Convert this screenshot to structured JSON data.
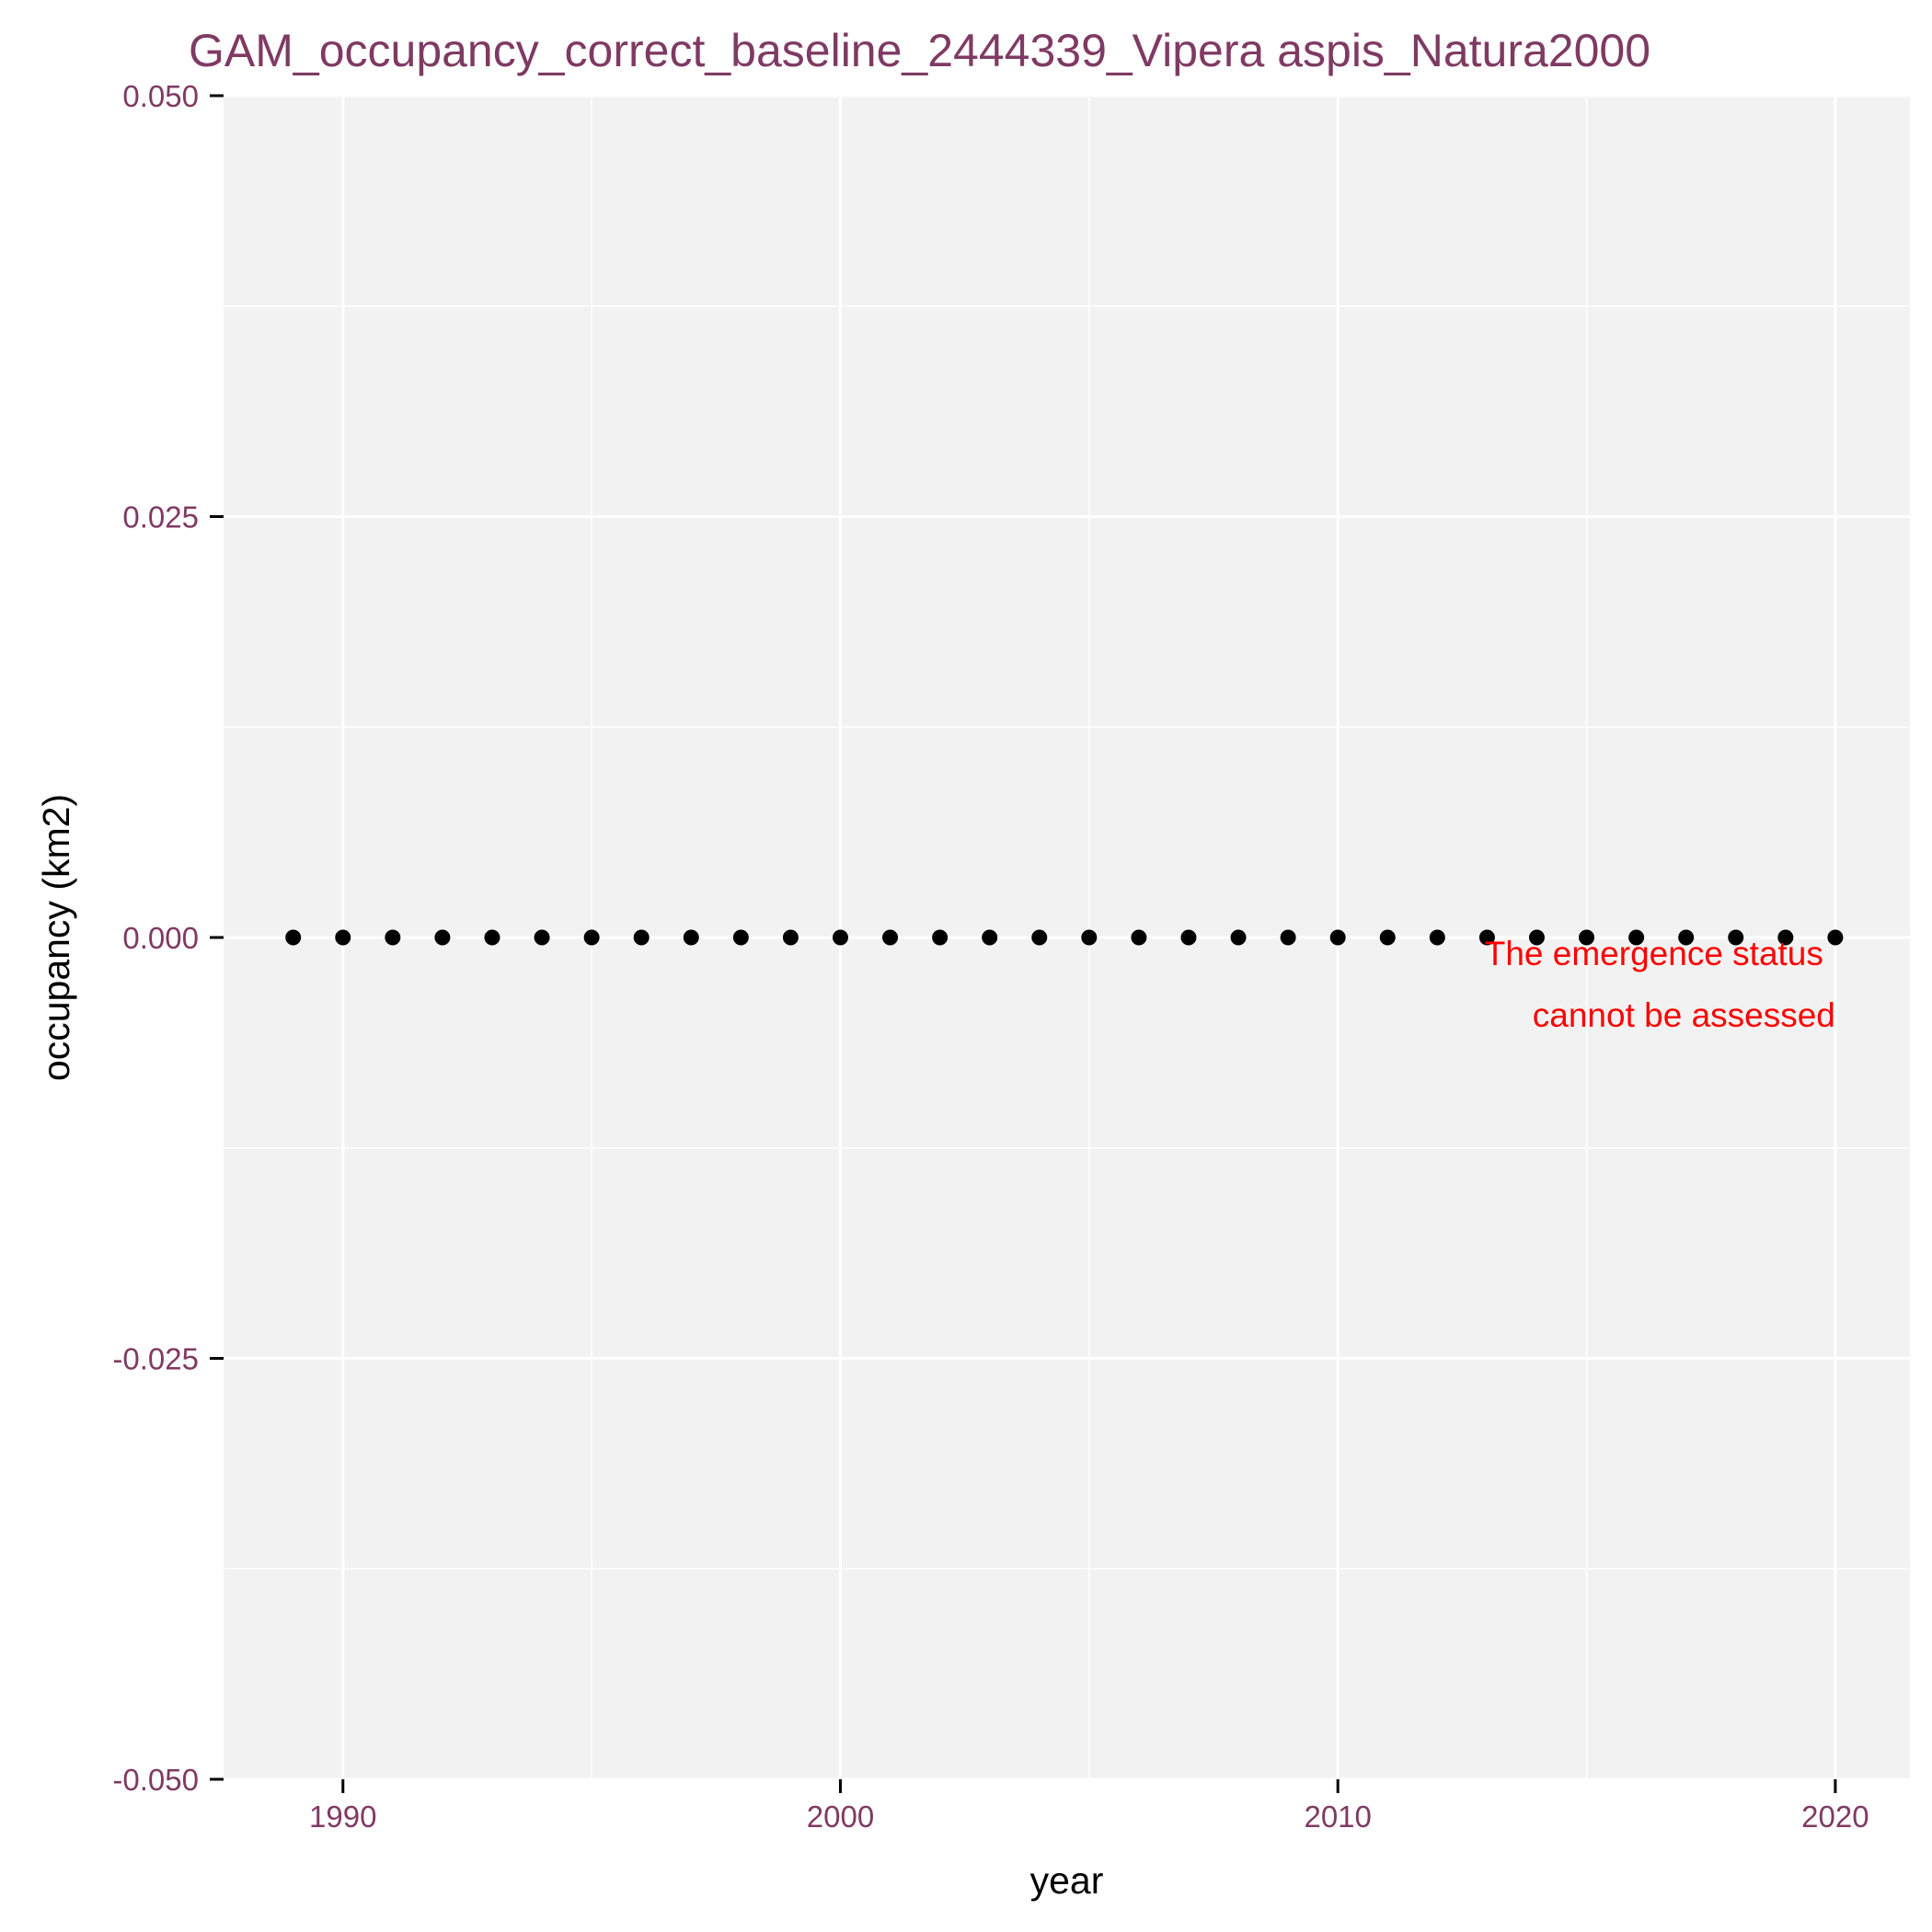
{
  "chart_data": {
    "type": "scatter",
    "title": "GAM_occupancy_correct_baseline_2444339_Vipera aspis_Natura2000",
    "xlabel": "year",
    "ylabel": "occupancy (km2)",
    "xlim": [
      1987.6,
      2021.5
    ],
    "ylim": [
      -0.05,
      0.05
    ],
    "x_ticks": [
      1990,
      2000,
      2010,
      2020
    ],
    "x_tick_labels": [
      "1990",
      "2000",
      "2010",
      "2020"
    ],
    "y_ticks": [
      0.05,
      0.025,
      0.0,
      -0.025,
      -0.05
    ],
    "y_tick_labels": [
      "0.050",
      "0.025",
      "0.000",
      "-0.025",
      "-0.050"
    ],
    "x_minor_ticks": [
      1995,
      2005,
      2015
    ],
    "y_minor_ticks": [
      0.0375,
      0.0125,
      -0.0125,
      -0.0375
    ],
    "grid": true,
    "legend": "none",
    "series": [
      {
        "x": [
          1989,
          1990,
          1991,
          1992,
          1993,
          1994,
          1995,
          1996,
          1997,
          1998,
          1999,
          2000,
          2001,
          2002,
          2003,
          2004,
          2005,
          2006,
          2007,
          2008,
          2009,
          2010,
          2011,
          2012,
          2013,
          2014,
          2015,
          2016,
          2017,
          2018,
          2019,
          2020
        ],
        "y": [
          0,
          0,
          0,
          0,
          0,
          0,
          0,
          0,
          0,
          0,
          0,
          0,
          0,
          0,
          0,
          0,
          0,
          0,
          0,
          0,
          0,
          0,
          0,
          0,
          0,
          0,
          0,
          0,
          0,
          0,
          0,
          0
        ]
      }
    ],
    "annotation": {
      "lines": [
        "The emergence status",
        "cannot be assessed"
      ],
      "anchor": "right",
      "x": 2020,
      "y": 0.0
    },
    "colors": {
      "title": "#7f3a63",
      "tick_labels": "#7f3a63",
      "axis_labels": "#000000",
      "panel": "#f2f2f2",
      "grid": "#ffffff",
      "points": "#000000",
      "annotation": "#ff0000"
    }
  }
}
